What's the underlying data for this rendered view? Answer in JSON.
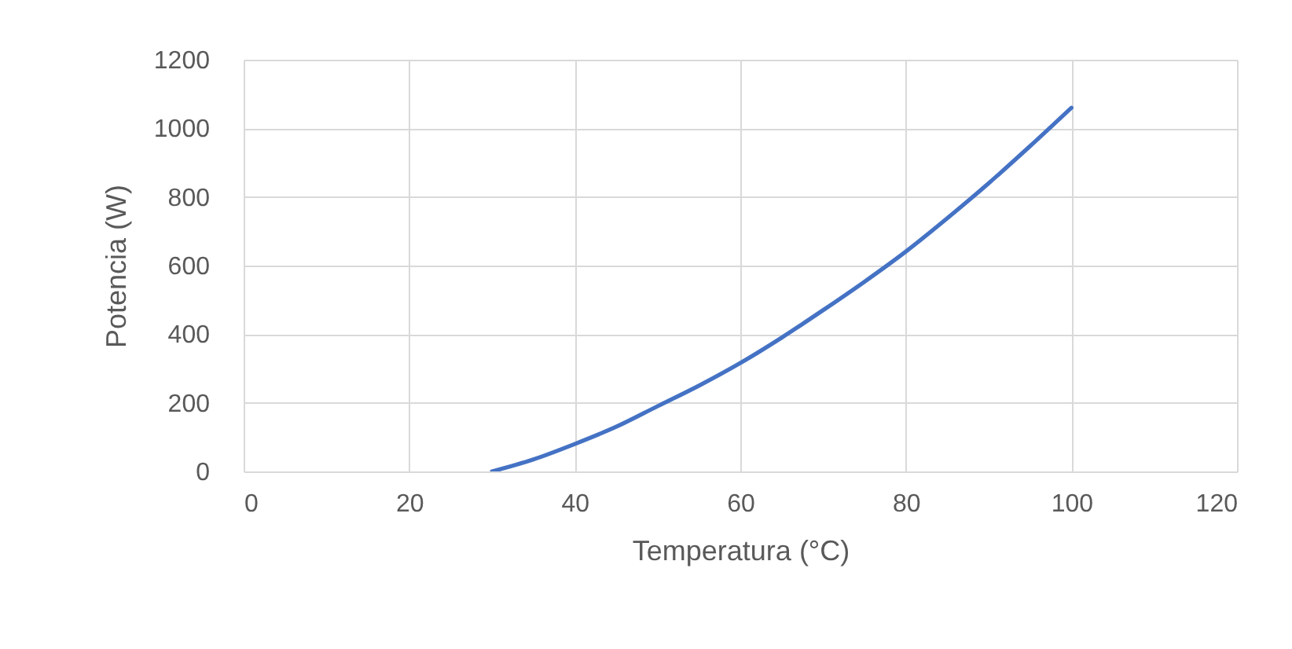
{
  "chart_data": {
    "type": "line",
    "xlabel": "Temperatura (°C)",
    "ylabel": "Potencia (W)",
    "x": [
      30,
      35,
      40,
      45,
      50,
      55,
      60,
      65,
      70,
      75,
      80,
      85,
      90,
      95,
      100
    ],
    "series": [
      {
        "color": "#4472c4",
        "values": [
          0,
          35,
          80,
          130,
          190,
          250,
          316,
          390,
          470,
          553,
          641,
          738,
          840,
          948,
          1060
        ]
      }
    ],
    "xlim": [
      0,
      120
    ],
    "xticks": [
      0,
      20,
      40,
      60,
      80,
      100,
      120
    ],
    "ylim": [
      0,
      1200
    ],
    "yticks": [
      0,
      200,
      400,
      600,
      800,
      1000,
      1200
    ],
    "grid": true,
    "marker": "none",
    "line_style": "solid"
  }
}
